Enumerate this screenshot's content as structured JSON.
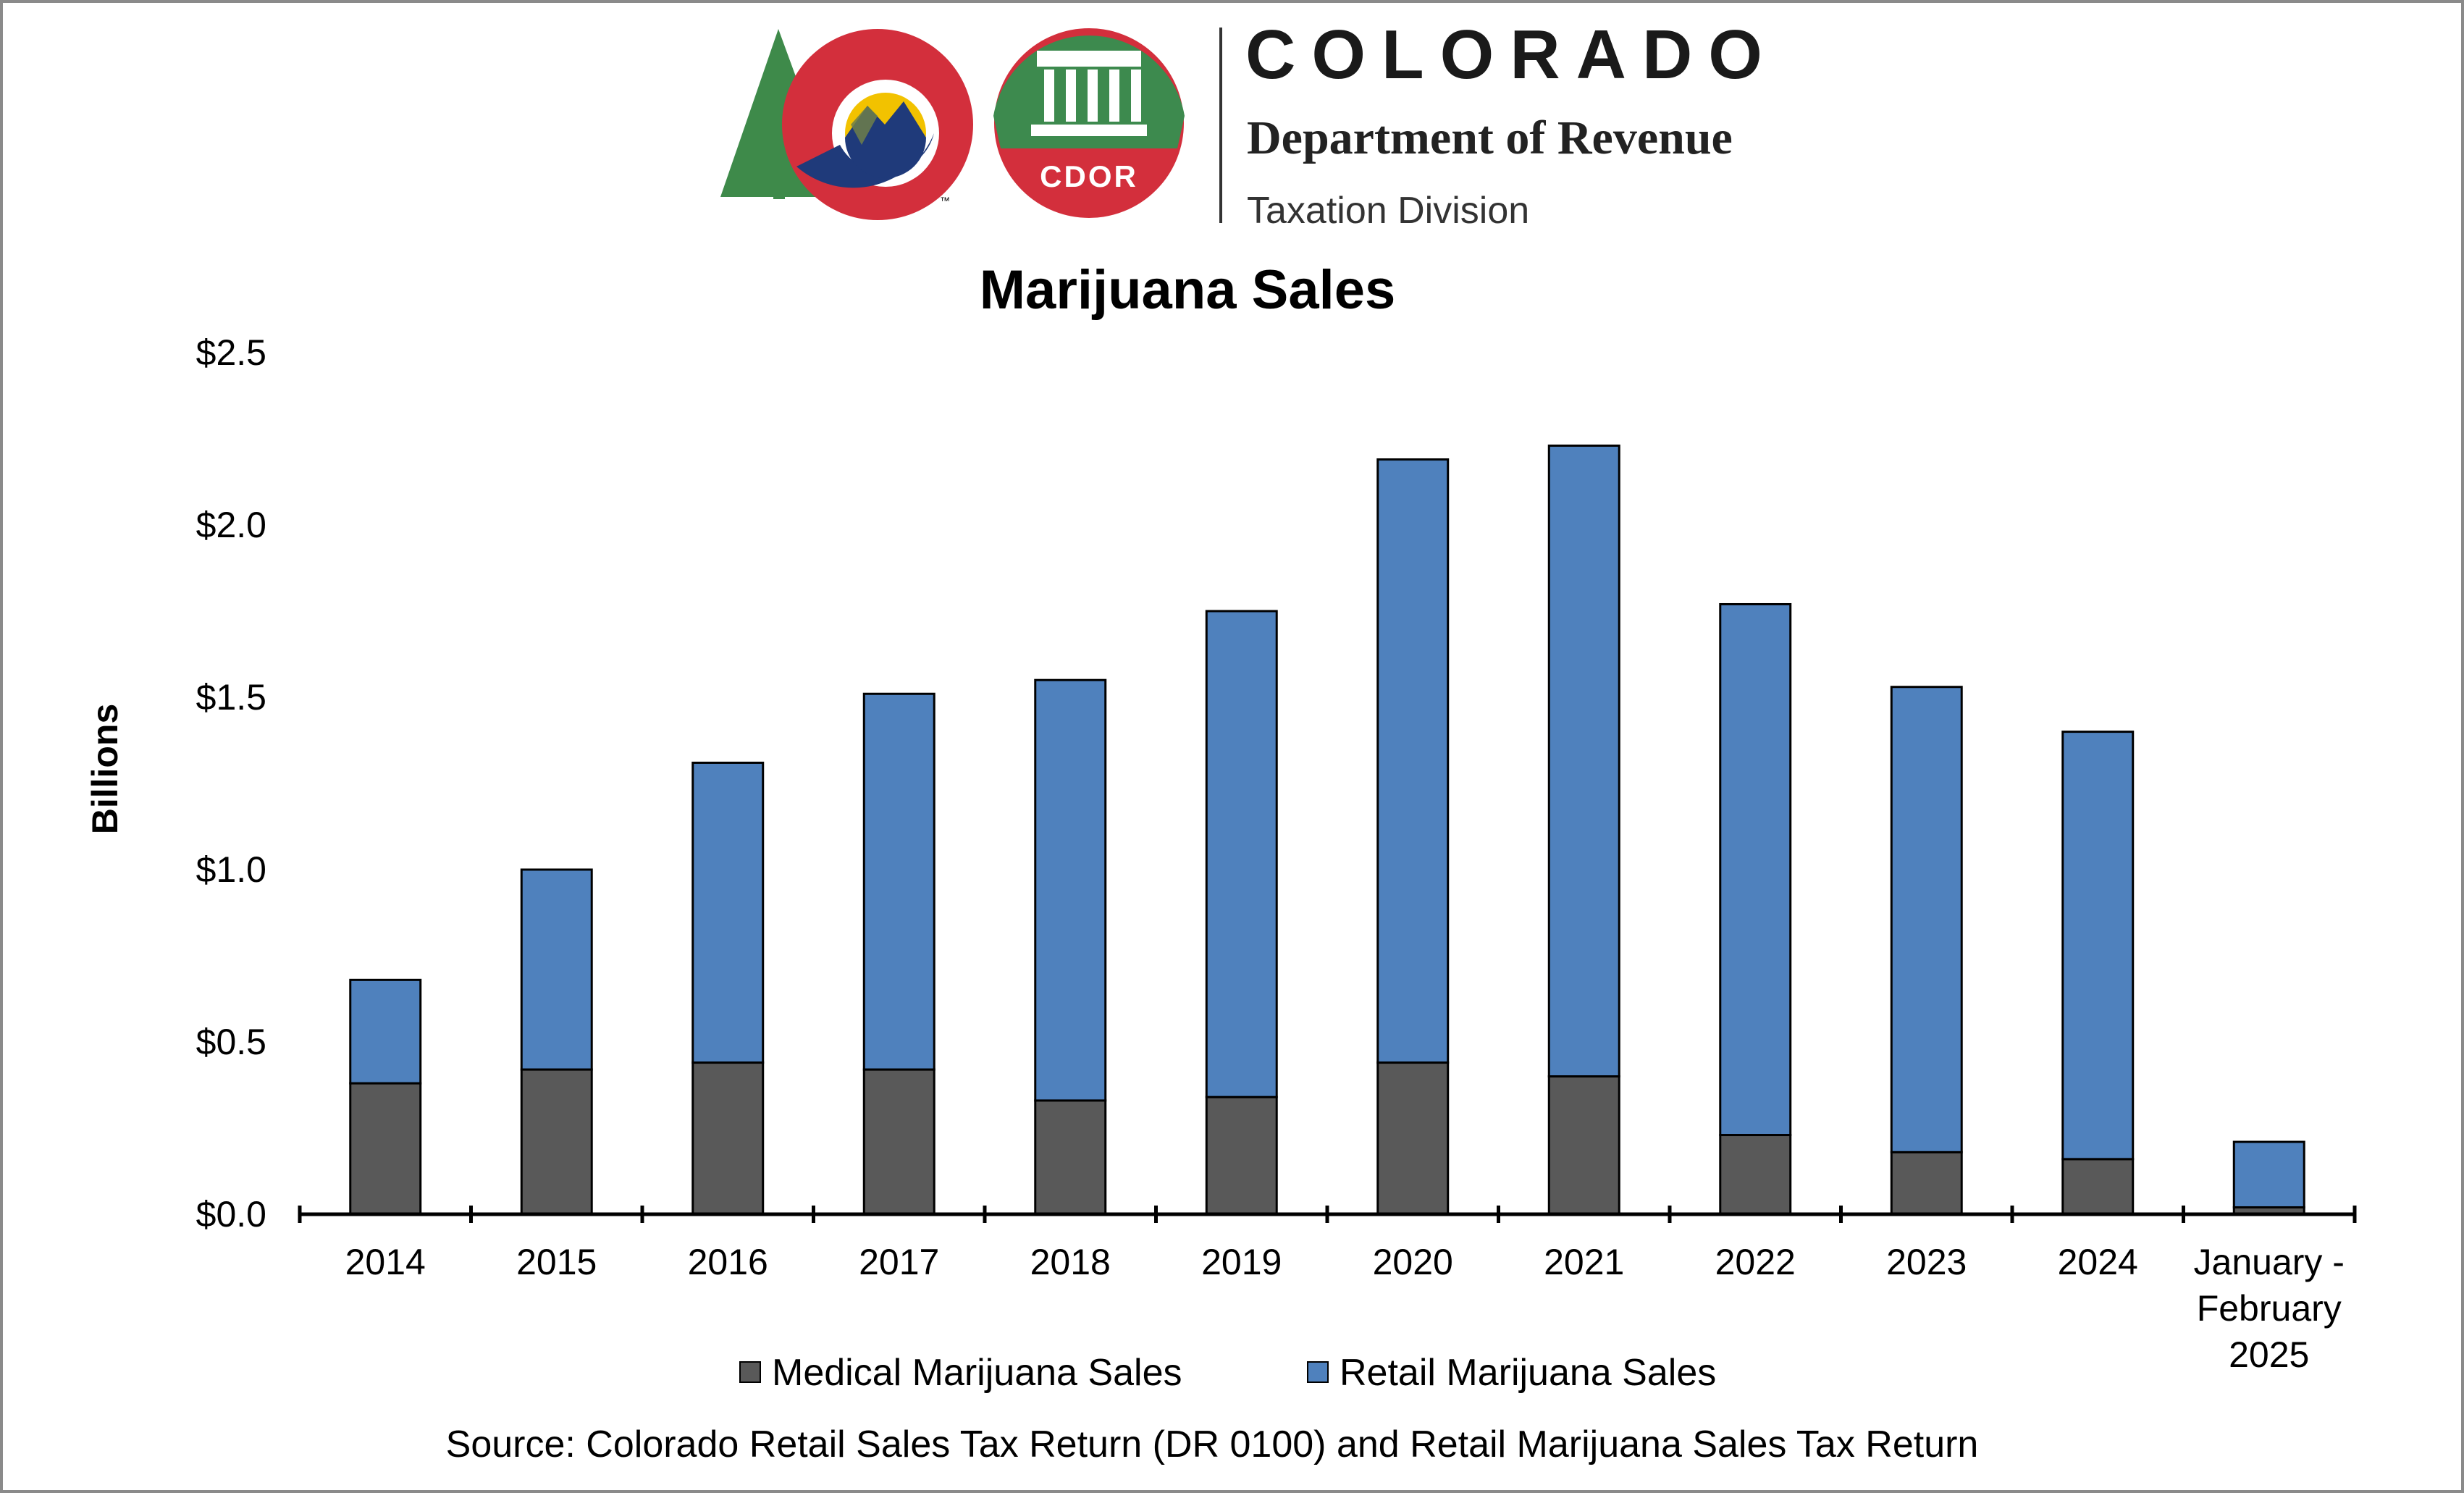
{
  "header": {
    "org_name": "COLORADO",
    "department": "Department of Revenue",
    "division": "Taxation Division",
    "badge_text": "CDOR",
    "trademark": "™"
  },
  "chart_data": {
    "type": "bar",
    "stacked": true,
    "title": "Marijuana Sales",
    "xlabel": "",
    "ylabel": "Billions",
    "ylim": [
      0,
      2.5
    ],
    "yticks": [
      "$0.0",
      "$0.5",
      "$1.0",
      "$1.5",
      "$2.0",
      "$2.5"
    ],
    "categories": [
      "2014",
      "2015",
      "2016",
      "2017",
      "2018",
      "2019",
      "2020",
      "2021",
      "2022",
      "2023",
      "2024",
      "January - February 2025"
    ],
    "category_lines": [
      [
        "2014"
      ],
      [
        "2015"
      ],
      [
        "2016"
      ],
      [
        "2017"
      ],
      [
        "2018"
      ],
      [
        "2019"
      ],
      [
        "2020"
      ],
      [
        "2021"
      ],
      [
        "2022"
      ],
      [
        "2023"
      ],
      [
        "2024"
      ],
      [
        "January -",
        "February",
        "2025"
      ]
    ],
    "series": [
      {
        "name": "Medical Marijuana Sales",
        "color": "#595959",
        "values": [
          0.38,
          0.42,
          0.44,
          0.42,
          0.33,
          0.34,
          0.44,
          0.4,
          0.23,
          0.18,
          0.16,
          0.02
        ]
      },
      {
        "name": "Retail Marijuana Sales",
        "color": "#4f81bd",
        "values": [
          0.3,
          0.58,
          0.87,
          1.09,
          1.22,
          1.41,
          1.75,
          1.83,
          1.54,
          1.35,
          1.24,
          0.19
        ]
      }
    ],
    "grid": false,
    "legend_position": "bottom",
    "source": "Source: Colorado Retail Sales Tax Return (DR 0100) and Retail Marijuana Sales Tax Return"
  }
}
